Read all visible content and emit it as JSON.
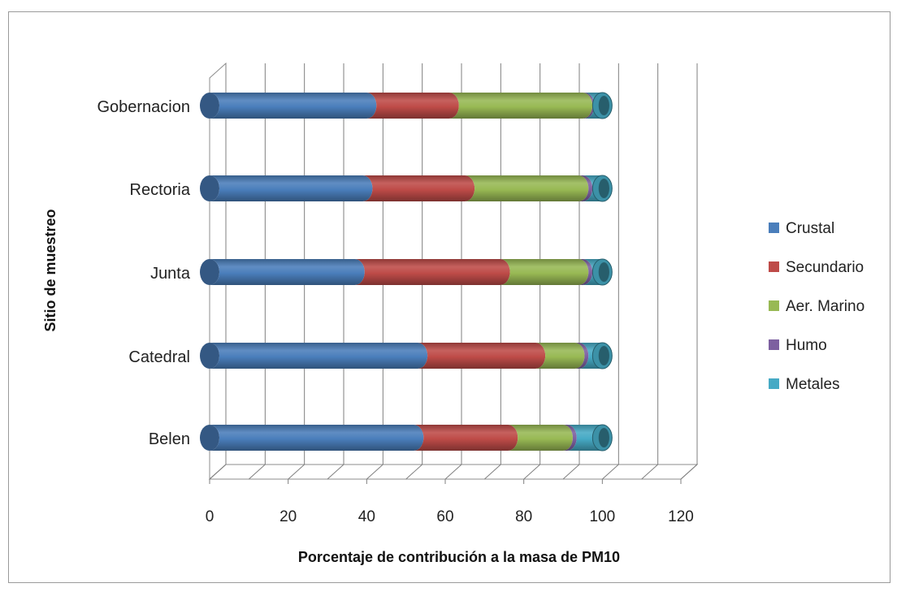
{
  "chart_data": {
    "type": "bar",
    "orientation": "horizontal",
    "stacked": true,
    "style": "3d-cylinder",
    "title": "",
    "xlabel": "Porcentaje de contribución a la masa de PM10",
    "ylabel": "Sitio de muestreo",
    "xlim": [
      0,
      120
    ],
    "xticks": [
      0,
      20,
      40,
      60,
      80,
      100,
      120
    ],
    "categories": [
      "Belen",
      "Catedral",
      "Junta",
      "Rectoria",
      "Gobernacion"
    ],
    "series": [
      {
        "name": "Crustal",
        "color": "#4a7ebb",
        "values": [
          52,
          53,
          37,
          39,
          40
        ]
      },
      {
        "name": "Secundario",
        "color": "#be4b48",
        "values": [
          24,
          30,
          37,
          26,
          21
        ]
      },
      {
        "name": "Aer. Marino",
        "color": "#98b954",
        "values": [
          14,
          10,
          20,
          29,
          34
        ]
      },
      {
        "name": "Humo",
        "color": "#7d60a0",
        "values": [
          1,
          1,
          1,
          1,
          0.5
        ]
      },
      {
        "name": "Metales",
        "color": "#46aac5",
        "values": [
          9,
          6,
          5,
          5,
          4.5
        ]
      }
    ],
    "grid": true,
    "legend_position": "right"
  }
}
